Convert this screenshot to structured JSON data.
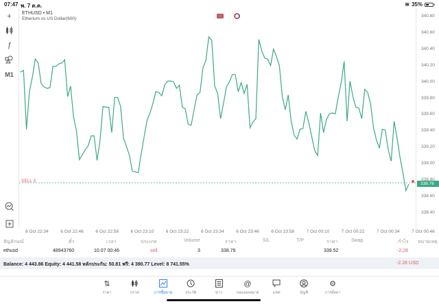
{
  "status_bar": {
    "time": "07:47",
    "date": "พ. 7 ต.ค.",
    "battery": "35%"
  },
  "sidebar": {
    "items": [
      {
        "name": "crosshair",
        "glyph": "+"
      },
      {
        "name": "indicators",
        "glyph": "♦"
      },
      {
        "name": "function",
        "glyph": "ƒ"
      },
      {
        "name": "objects",
        "glyph": "⚲"
      },
      {
        "name": "timeframe",
        "label": "M1"
      },
      {
        "name": "zoom-chart",
        "glyph": "◎"
      },
      {
        "name": "new-order",
        "glyph": "⊞"
      }
    ]
  },
  "chart": {
    "symbol": "ETHUSD • M1",
    "description": "Etherium vs US Dollar(600)",
    "line_color": "#3aa886",
    "sell_label": "SELL 3",
    "current_price": "338.76"
  },
  "chart_data": {
    "type": "line",
    "title": "ETHUSD • M1",
    "subtitle": "Etherium vs US Dollar(600)",
    "xlabel": "",
    "ylabel": "",
    "ylim": [
      338.3,
      340.9
    ],
    "y_ticks": [
      "340.80",
      "340.60",
      "340.40",
      "340.20",
      "340.00",
      "339.80",
      "339.60",
      "339.40",
      "339.20",
      "339.00",
      "338.80",
      "338.60",
      "338.40"
    ],
    "x_ticks": [
      "6 Oct 22:34",
      "6 Oct 22:46",
      "6 Oct 22:58",
      "6 Oct 23:10",
      "6 Oct 23:22",
      "6 Oct 23:34",
      "6 Oct 23:46",
      "6 Oct 23:58",
      "7 Oct 00:10",
      "7 Oct 00:22",
      "7 Oct 00:34",
      "7 Oct 00:46"
    ],
    "series": [
      {
        "name": "ETHUSD close",
        "values": [
          340.12,
          340.14,
          339.42,
          339.88,
          340.06,
          340.28,
          340.23,
          339.98,
          339.94,
          339.92,
          339.93,
          340.19,
          340.19,
          340.22,
          340.23,
          340.27,
          339.82,
          339.95,
          339.57,
          339.4,
          339.05,
          339.11,
          339.17,
          339.22,
          339.34,
          339.34,
          339.04,
          339.28,
          339.7,
          339.69,
          339.69,
          339.38,
          339.81,
          339.81,
          339.7,
          339.31,
          339.21,
          339.1,
          338.91,
          338.9,
          338.89,
          339.12,
          339.33,
          339.53,
          339.62,
          339.74,
          339.88,
          339.87,
          339.83,
          339.96,
          340.01,
          340.01,
          340.0,
          339.92,
          339.96,
          339.69,
          339.67,
          339.48,
          339.47,
          339.66,
          339.84,
          339.87,
          340.17,
          340.26,
          340.55,
          340.51,
          339.95,
          339.86,
          339.55,
          339.74,
          339.94,
          340.0,
          340.09,
          340.09,
          339.88,
          339.99,
          339.86,
          339.97,
          339.44,
          339.51,
          339.55,
          340.52,
          340.38,
          340.29,
          340.28,
          340.2,
          340.4,
          340.31,
          340.2,
          339.82,
          339.66,
          339.84,
          339.52,
          339.35,
          339.3,
          339.42,
          339.43,
          339.64,
          339.5,
          339.33,
          339.16,
          339.1,
          339.62,
          339.38,
          339.54,
          339.61,
          339.62,
          339.61,
          339.81,
          339.99,
          340.25,
          339.52,
          340.01,
          339.82,
          339.69,
          339.68,
          339.55,
          339.91,
          339.87,
          339.73,
          339.44,
          339.29,
          339.19,
          339.42,
          339.41,
          339.17,
          339.03,
          339.52,
          339.32,
          339.08,
          338.89,
          338.67,
          338.75
        ]
      }
    ],
    "annotations": [
      "SELL 3 @ 338.76 (dashed line)"
    ],
    "grid": false,
    "legend_position": "none"
  },
  "positions": {
    "headers": [
      "สัญลักษณ์",
      "ตั๋ว",
      "เวลา",
      "ประเภท",
      "Volume",
      "ราคา",
      "S/L",
      "T/P",
      "ราคา",
      "Swap",
      "กำไร",
      "หมายเหตุ"
    ],
    "rows": [
      {
        "symbol": "ethusd",
        "ticket": "48943760",
        "time": "10.07 00:46",
        "type": "sell",
        "volume": "3",
        "open_price": "338.76",
        "sl": "",
        "tp": "",
        "current_price": "339.52",
        "swap": "",
        "profit": "-2.28",
        "comment": ""
      }
    ]
  },
  "balance": {
    "text": "Balance: 4 443.86 Equity: 4 441.58 หลักประกัน: 50.81 ฟรี: 4 390.77 Level: 8 741.55%",
    "total": "-2.28  USD"
  },
  "tabbar": {
    "items": [
      {
        "label": "ราคา",
        "glyph": "⇅"
      },
      {
        "label": "กราฟ",
        "glyph": "‖"
      },
      {
        "label": "การซื้อขาย",
        "glyph": "📈",
        "active": true
      },
      {
        "label": "ประวัติ",
        "glyph": "🕓"
      },
      {
        "label": "ข่าว",
        "glyph": "☰"
      },
      {
        "label": "กล่องจดหมาย",
        "glyph": "@"
      },
      {
        "label": "แชท",
        "glyph": "▭"
      },
      {
        "label": "บัญชี",
        "glyph": "◉"
      },
      {
        "label": "การตั้งค่า",
        "glyph": "⚙"
      }
    ]
  }
}
